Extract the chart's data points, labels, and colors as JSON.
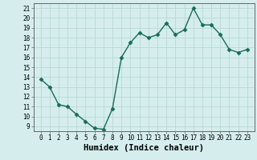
{
  "title": "",
  "xlabel": "Humidex (Indice chaleur)",
  "ylabel": "",
  "x": [
    0,
    1,
    2,
    3,
    4,
    5,
    6,
    7,
    8,
    9,
    10,
    11,
    12,
    13,
    14,
    15,
    16,
    17,
    18,
    19,
    20,
    21,
    22,
    23
  ],
  "y": [
    13.8,
    13.0,
    11.2,
    11.0,
    10.2,
    9.5,
    8.8,
    8.7,
    10.8,
    16.0,
    17.5,
    18.5,
    18.0,
    18.3,
    19.5,
    18.3,
    18.8,
    21.0,
    19.3,
    19.3,
    18.3,
    16.8,
    16.5,
    16.8
  ],
  "line_color": "#1a6b5a",
  "marker": "D",
  "marker_size": 2.5,
  "bg_color": "#d5eeed",
  "grid_color": "#b8d8d4",
  "ylim": [
    8.5,
    21.5
  ],
  "yticks": [
    9,
    10,
    11,
    12,
    13,
    14,
    15,
    16,
    17,
    18,
    19,
    20,
    21
  ],
  "xticks": [
    0,
    1,
    2,
    3,
    4,
    5,
    6,
    7,
    8,
    9,
    10,
    11,
    12,
    13,
    14,
    15,
    16,
    17,
    18,
    19,
    20,
    21,
    22,
    23
  ],
  "tick_label_fontsize": 5.5,
  "xlabel_fontsize": 7.5,
  "line_width": 1.0,
  "spine_color": "#666666"
}
